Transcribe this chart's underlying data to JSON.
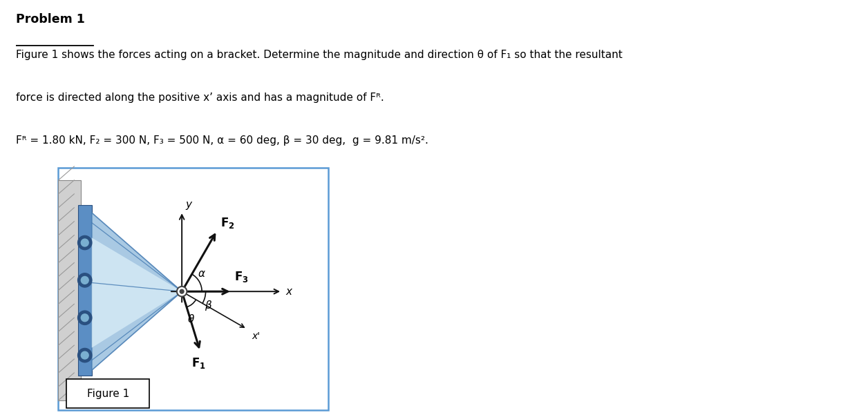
{
  "title": "Problem 1",
  "line1": "Figure 1 shows the forces acting on a bracket. Determine the magnitude and direction θ of F₁ so that the resultant",
  "line2": "force is directed along the positive x’ axis and has a magnitude of Fᴿ.",
  "line3": "Fᴿ = 1.80 kN, F₂ = 300 N, F₃ = 500 N, α = 60 deg, β = 30 deg,  g = 9.81 m/s².",
  "fig_border_color": "#5b9bd5",
  "background_color": "#ffffff",
  "wall_color": "#b0b0b0",
  "wall_edge": "#888888",
  "bracket_blue_light": "#c5ddf0",
  "bracket_blue_mid": "#a0c4e0",
  "bracket_blue_dark": "#4a7fb5",
  "bracket_face_color": "#5b8ec4",
  "bolt_dark": "#2a5080",
  "bolt_light": "#7aafd0",
  "arrow_color": "#111111",
  "axis_color": "#111111",
  "arc_color": "#111111"
}
